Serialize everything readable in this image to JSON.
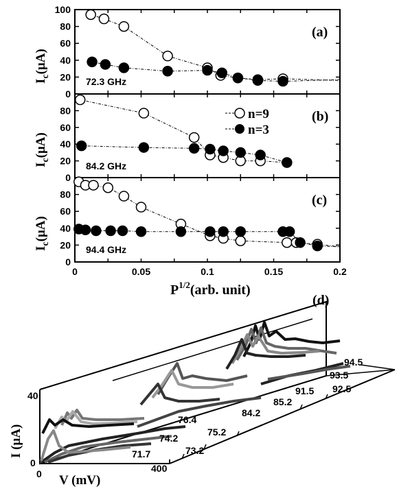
{
  "chart_data": [
    {
      "type": "scatter",
      "panel_label": "(a)",
      "annotation": "72.3 GHz",
      "ylabel": "I",
      "ylabel_sub": "c",
      "ylabel_unit": "(μA)",
      "xlim": [
        0,
        0.2
      ],
      "ylim": [
        0,
        100
      ],
      "yticks": [
        "0",
        "20",
        "40",
        "60",
        "80",
        "100"
      ],
      "series": [
        {
          "marker": "open",
          "x": [
            0.012,
            0.022,
            0.037,
            0.07,
            0.1,
            0.11,
            0.123,
            0.138,
            0.157,
            0.2
          ],
          "y": [
            94,
            89,
            80,
            45,
            31,
            22,
            19,
            17,
            18,
            16
          ]
        },
        {
          "marker": "filled",
          "x": [
            0.013,
            0.023,
            0.037,
            0.07,
            0.1,
            0.111,
            0.123,
            0.138,
            0.157,
            0.2
          ],
          "y": [
            38,
            35,
            31,
            27,
            28,
            25,
            19,
            16,
            15,
            17
          ]
        }
      ]
    },
    {
      "type": "scatter",
      "panel_label": "(b)",
      "annotation": "84.2 GHz",
      "ylabel": "I",
      "ylabel_sub": "c",
      "ylabel_unit": "(μA)",
      "xlim": [
        0,
        0.2
      ],
      "ylim": [
        0,
        100
      ],
      "yticks": [
        "0",
        "20",
        "40",
        "60",
        "80"
      ],
      "legend": [
        {
          "marker": "open",
          "label": "n=9"
        },
        {
          "marker": "filled",
          "label": "n=3"
        }
      ],
      "series": [
        {
          "marker": "open",
          "x": [
            0.004,
            0.052,
            0.09,
            0.102,
            0.112,
            0.125,
            0.14,
            0.16
          ],
          "y": [
            93,
            77,
            48,
            27,
            24,
            20,
            20,
            18
          ]
        },
        {
          "marker": "filled",
          "x": [
            0.005,
            0.052,
            0.09,
            0.102,
            0.112,
            0.125,
            0.14,
            0.16
          ],
          "y": [
            38,
            36,
            35,
            34,
            32,
            30,
            27,
            18
          ]
        }
      ]
    },
    {
      "type": "scatter",
      "panel_label": "(c)",
      "annotation": "94.4 GHz",
      "ylabel": "I",
      "ylabel_sub": "c",
      "ylabel_unit": "(μA)",
      "xlabel": "P",
      "xlabel_sup": "1/2",
      "xlabel_unit": "(arb. unit)",
      "xlim": [
        0,
        0.2
      ],
      "ylim": [
        0,
        100
      ],
      "yticks": [
        "0",
        "20",
        "40",
        "60",
        "80"
      ],
      "xticks": [
        "0",
        "0.05",
        "0.1",
        "0.15",
        "0.2"
      ],
      "series": [
        {
          "marker": "open",
          "x": [
            0.003,
            0.008,
            0.014,
            0.025,
            0.037,
            0.05,
            0.08,
            0.102,
            0.112,
            0.125,
            0.16,
            0.167,
            0.183,
            0.2
          ],
          "y": [
            95,
            91,
            91,
            88,
            78,
            65,
            45,
            31,
            28,
            25,
            23,
            23,
            21,
            18
          ]
        },
        {
          "marker": "filled",
          "x": [
            0.003,
            0.008,
            0.016,
            0.027,
            0.036,
            0.05,
            0.08,
            0.102,
            0.112,
            0.125,
            0.157,
            0.162,
            0.17,
            0.183,
            0.2
          ],
          "y": [
            39,
            38,
            37,
            37,
            37,
            36,
            36,
            36,
            36,
            36,
            36,
            36,
            23,
            19,
            18
          ]
        }
      ]
    },
    {
      "type": "line",
      "panel_label": "(d)",
      "xlabel": "V (mV)",
      "ylabel": "I (μA)",
      "xticks": [
        "0",
        "400"
      ],
      "yticks": [
        "0",
        "40"
      ],
      "z_labels": [
        "71.7",
        "73.2",
        "74.2",
        "75.2",
        "76.4",
        "84.2",
        "85.2",
        "91.5",
        "92.5",
        "93.5",
        "94.5"
      ]
    }
  ]
}
